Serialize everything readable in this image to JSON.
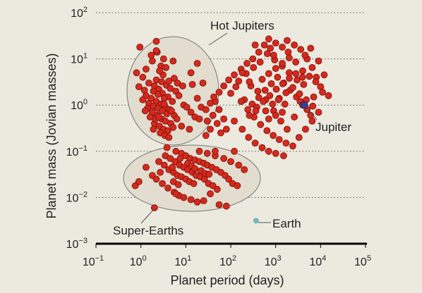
{
  "chart_data": {
    "type": "scatter",
    "title": "",
    "xlabel": "Planet period (days)",
    "ylabel": "Planet mass (Jovian masses)",
    "x_scale": "log",
    "y_scale": "log",
    "xlim": [
      0.1,
      100000
    ],
    "ylim": [
      0.001,
      100
    ],
    "grid": "horizontal dotted at each decade",
    "x_ticks": [
      {
        "base": "10",
        "exp": "−1"
      },
      {
        "base": "10",
        "exp": "0"
      },
      {
        "base": "10",
        "exp": "1"
      },
      {
        "base": "10",
        "exp": "2"
      },
      {
        "base": "10",
        "exp": "3"
      },
      {
        "base": "10",
        "exp": "4"
      },
      {
        "base": "10",
        "exp": "5"
      }
    ],
    "y_ticks": [
      {
        "base": "10",
        "exp": "−3"
      },
      {
        "base": "10",
        "exp": "−2"
      },
      {
        "base": "10",
        "exp": "−1"
      },
      {
        "base": "10",
        "exp": "0"
      },
      {
        "base": "10",
        "exp": "1"
      },
      {
        "base": "10",
        "exp": "2"
      }
    ],
    "annotations": {
      "hot_jupiters": "Hot Jupiters",
      "super_earths": "Super-Earths",
      "jupiter": "Jupiter",
      "earth": "Earth"
    },
    "colors": {
      "planet": "#d42a1e",
      "planet_edge": "#7a0d08",
      "jupiter": "#3b3f8f",
      "earth": "#6cc3c6",
      "region_fill": "#e2ddce",
      "region_edge": "#777777"
    },
    "special_points": [
      {
        "name": "Jupiter",
        "x": 4333,
        "y": 1.0
      },
      {
        "name": "Earth",
        "x": 365,
        "y": 0.00315
      }
    ],
    "series": [
      {
        "points": [
          [
            0.95,
            18
          ],
          [
            0.8,
            5
          ],
          [
            1.3,
            6
          ],
          [
            2.2,
            24
          ],
          [
            3.2,
            10
          ],
          [
            1.8,
            9
          ],
          [
            2.8,
            7
          ],
          [
            1.1,
            4
          ],
          [
            0.9,
            2.5
          ],
          [
            1.2,
            2.1
          ],
          [
            1.5,
            3.0
          ],
          [
            2.0,
            2.6
          ],
          [
            2.5,
            2.2
          ],
          [
            3.0,
            1.8
          ],
          [
            1.3,
            1.6
          ],
          [
            1.7,
            1.4
          ],
          [
            2.2,
            1.2
          ],
          [
            2.8,
            1.05
          ],
          [
            3.5,
            0.9
          ],
          [
            1.1,
            1.3
          ],
          [
            1.5,
            1.1
          ],
          [
            1.9,
            0.95
          ],
          [
            2.4,
            0.85
          ],
          [
            3.0,
            0.75
          ],
          [
            3.8,
            0.65
          ],
          [
            1.4,
            0.85
          ],
          [
            1.8,
            0.7
          ],
          [
            2.3,
            0.6
          ],
          [
            2.9,
            0.5
          ],
          [
            3.5,
            0.45
          ],
          [
            2.0,
            0.4
          ],
          [
            2.6,
            0.35
          ],
          [
            3.2,
            0.3
          ],
          [
            4.0,
            0.28
          ],
          [
            2.7,
            0.25
          ],
          [
            3.4,
            0.22
          ],
          [
            4.2,
            0.2
          ],
          [
            2.2,
            3.5
          ],
          [
            2.9,
            3.2
          ],
          [
            3.7,
            2.7
          ],
          [
            4.5,
            2.3
          ],
          [
            4.0,
            1.5
          ],
          [
            5.0,
            1.2
          ],
          [
            4.4,
            0.8
          ],
          [
            5.5,
            0.6
          ],
          [
            6.0,
            2.0
          ],
          [
            7.0,
            1.6
          ],
          [
            8.5,
            2.6
          ],
          [
            5.5,
            3.8
          ],
          [
            6.5,
            3.0
          ],
          [
            3.1,
            4.5
          ],
          [
            1.9,
            2.0
          ],
          [
            2.4,
            1.7
          ],
          [
            3.3,
            1.4
          ],
          [
            1.6,
            0.55
          ],
          [
            2.1,
            0.5
          ],
          [
            4.6,
            0.4
          ],
          [
            5.2,
            0.33
          ],
          [
            6.3,
            0.5
          ],
          [
            9.0,
            1.0
          ],
          [
            10.5,
            0.9
          ],
          [
            13,
            0.7
          ],
          [
            16,
            0.55
          ],
          [
            20,
            0.5
          ],
          [
            8,
            0.35
          ],
          [
            12,
            0.3
          ],
          [
            18,
            1.4
          ],
          [
            22,
            0.9
          ],
          [
            14,
            2.8
          ],
          [
            24,
            3.0
          ],
          [
            30,
            0.45
          ],
          [
            35,
            0.3
          ],
          [
            40,
            0.6
          ],
          [
            50,
            0.4
          ],
          [
            60,
            0.25
          ],
          [
            70,
            0.5
          ],
          [
            80,
            0.3
          ],
          [
            45,
            1.2
          ],
          [
            55,
            0.8
          ],
          [
            28,
            0.22
          ],
          [
            2.6,
            5.5
          ],
          [
            3.6,
            6.5
          ],
          [
            1.7,
            12
          ],
          [
            2.3,
            14
          ],
          [
            4.2,
            3.3
          ],
          [
            1.25,
            0.75
          ],
          [
            1.9,
            0.3
          ],
          [
            2.5,
            0.55
          ],
          [
            3.3,
            1.05
          ],
          [
            4.8,
            0.75
          ],
          [
            2.2,
            15
          ],
          [
            5.2,
            9
          ],
          [
            13,
            5
          ],
          [
            18,
            8
          ],
          [
            0.75,
            0.018
          ],
          [
            0.9,
            0.022
          ],
          [
            1.3,
            0.045
          ],
          [
            1.8,
            0.03
          ],
          [
            2.2,
            0.025
          ],
          [
            3.0,
            0.02
          ],
          [
            4.0,
            0.016
          ],
          [
            5.5,
            0.013
          ],
          [
            7.0,
            0.011
          ],
          [
            2.0,
            0.006
          ],
          [
            2.5,
            0.06
          ],
          [
            3.3,
            0.05
          ],
          [
            4.2,
            0.04
          ],
          [
            5.3,
            0.035
          ],
          [
            6.5,
            0.03
          ],
          [
            8.0,
            0.028
          ],
          [
            10,
            0.025
          ],
          [
            12,
            0.022
          ],
          [
            15,
            0.02
          ],
          [
            3.5,
            0.08
          ],
          [
            4.5,
            0.07
          ],
          [
            5.8,
            0.06
          ],
          [
            7.2,
            0.05
          ],
          [
            9.0,
            0.045
          ],
          [
            11,
            0.04
          ],
          [
            14,
            0.035
          ],
          [
            17,
            0.03
          ],
          [
            21,
            0.028
          ],
          [
            26,
            0.025
          ],
          [
            32,
            0.02
          ],
          [
            40,
            0.018
          ],
          [
            50,
            0.015
          ],
          [
            6,
            0.1
          ],
          [
            8,
            0.09
          ],
          [
            10,
            0.08
          ],
          [
            12.5,
            0.07
          ],
          [
            16,
            0.065
          ],
          [
            20,
            0.06
          ],
          [
            25,
            0.055
          ],
          [
            30,
            0.05
          ],
          [
            38,
            0.045
          ],
          [
            48,
            0.04
          ],
          [
            60,
            0.035
          ],
          [
            75,
            0.03
          ],
          [
            90,
            0.025
          ],
          [
            110,
            0.02
          ],
          [
            140,
            0.018
          ],
          [
            20,
            0.1
          ],
          [
            30,
            0.09
          ],
          [
            45,
            0.08
          ],
          [
            70,
            0.07
          ],
          [
            100,
            0.06
          ],
          [
            150,
            0.05
          ],
          [
            6,
            0.012
          ],
          [
            9,
            0.01
          ],
          [
            13,
            0.009
          ],
          [
            18,
            0.008
          ],
          [
            25,
            0.0085
          ],
          [
            35,
            0.012
          ],
          [
            55,
            0.007
          ],
          [
            80,
            0.0065
          ],
          [
            45,
            0.1
          ],
          [
            120,
            0.1
          ],
          [
            200,
            0.04
          ],
          [
            3.8,
            0.12
          ],
          [
            2.7,
            0.035
          ],
          [
            7.5,
            0.07
          ],
          [
            5.0,
            0.045
          ],
          [
            11,
            0.055
          ],
          [
            13.5,
            0.048
          ],
          [
            16,
            0.042
          ],
          [
            22,
            0.038
          ],
          [
            27,
            0.033
          ],
          [
            33,
            0.032
          ],
          [
            5.3,
            0.022
          ],
          [
            6.8,
            0.019
          ],
          [
            200,
            1.3
          ],
          [
            280,
            2.6
          ],
          [
            400,
            2.0
          ],
          [
            600,
            1.3
          ],
          [
            900,
            0.75
          ],
          [
            1300,
            0.45
          ],
          [
            1800,
            0.3
          ],
          [
            2600,
            0.55
          ],
          [
            3500,
            1.2
          ],
          [
            5000,
            0.8
          ],
          [
            150,
            3.3
          ],
          [
            220,
            4.8
          ],
          [
            320,
            6.5
          ],
          [
            450,
            8.5
          ],
          [
            650,
            13
          ],
          [
            950,
            9.5
          ],
          [
            1400,
            7.0
          ],
          [
            2000,
            5.0
          ],
          [
            3000,
            3.5
          ],
          [
            4200,
            2.8
          ],
          [
            300,
            1.05
          ],
          [
            420,
            1.45
          ],
          [
            580,
            2.1
          ],
          [
            800,
            2.9
          ],
          [
            1100,
            4.0
          ],
          [
            1500,
            3.0
          ],
          [
            2100,
            2.1
          ],
          [
            2900,
            1.5
          ],
          [
            4000,
            1.0
          ],
          [
            6000,
            0.6
          ],
          [
            120,
            0.45
          ],
          [
            180,
            0.3
          ],
          [
            250,
            0.2
          ],
          [
            350,
            0.15
          ],
          [
            500,
            0.12
          ],
          [
            700,
            0.1
          ],
          [
            1000,
            0.09
          ],
          [
            1500,
            0.08
          ],
          [
            700,
            0.5
          ],
          [
            1000,
            0.6
          ],
          [
            1400,
            0.7
          ],
          [
            100,
            1.8
          ],
          [
            130,
            2.5
          ],
          [
            170,
            1.2
          ],
          [
            240,
            0.8
          ],
          [
            330,
            0.55
          ],
          [
            460,
            0.38
          ],
          [
            640,
            0.28
          ],
          [
            880,
            0.22
          ],
          [
            1200,
            0.18
          ],
          [
            1700,
            0.15
          ],
          [
            2400,
            0.13
          ],
          [
            3300,
            0.2
          ],
          [
            4600,
            0.3
          ],
          [
            6500,
            0.45
          ],
          [
            9000,
            0.7
          ],
          [
            7000,
            1.5
          ],
          [
            10000,
            2.5
          ],
          [
            8000,
            4.0
          ],
          [
            6500,
            6.5
          ],
          [
            5000,
            10
          ],
          [
            3600,
            16
          ],
          [
            2600,
            20
          ],
          [
            1900,
            14
          ],
          [
            1400,
            18
          ],
          [
            1000,
            22
          ],
          [
            760,
            17
          ],
          [
            560,
            20
          ],
          [
            420,
            14
          ],
          [
            310,
            10
          ],
          [
            230,
            8
          ],
          [
            170,
            6
          ],
          [
            120,
            4.5
          ],
          [
            90,
            3.5
          ],
          [
            70,
            2.6
          ],
          [
            55,
            1.9
          ],
          [
            42,
            1.5
          ],
          [
            35,
            1.1
          ],
          [
            28,
            0.8
          ],
          [
            600,
            0.75
          ],
          [
            850,
            1.05
          ],
          [
            1200,
            1.4
          ],
          [
            1700,
            1.85
          ],
          [
            2400,
            2.4
          ],
          [
            3400,
            1.75
          ],
          [
            4800,
            1.3
          ],
          [
            6700,
            0.95
          ],
          [
            500,
            3.6
          ],
          [
            700,
            4.8
          ],
          [
            1000,
            6.2
          ],
          [
            1400,
            8
          ],
          [
            2000,
            10.5
          ],
          [
            2800,
            8.5
          ],
          [
            4000,
            5.5
          ],
          [
            5600,
            4.2
          ],
          [
            7800,
            3.2
          ],
          [
            11000,
            1.9
          ],
          [
            15000,
            1.6
          ],
          [
            12000,
            4.5
          ],
          [
            9000,
            9
          ],
          [
            380,
            0.9
          ],
          [
            530,
            1.2
          ],
          [
            740,
            1.6
          ],
          [
            1030,
            2.2
          ],
          [
            1440,
            2.9
          ],
          [
            2010,
            3.8
          ],
          [
            2810,
            4.8
          ],
          [
            3930,
            4.0
          ],
          [
            260,
            0.6
          ],
          [
            360,
            0.75
          ],
          [
            180,
            5
          ],
          [
            260,
            3.2
          ],
          [
            900,
            12
          ],
          [
            1800,
            25
          ],
          [
            700,
            27
          ],
          [
            4500,
            12
          ],
          [
            6000,
            17
          ],
          [
            350,
            20
          ],
          [
            1150,
            1.3
          ],
          [
            1600,
            1.05
          ]
        ]
      }
    ]
  }
}
